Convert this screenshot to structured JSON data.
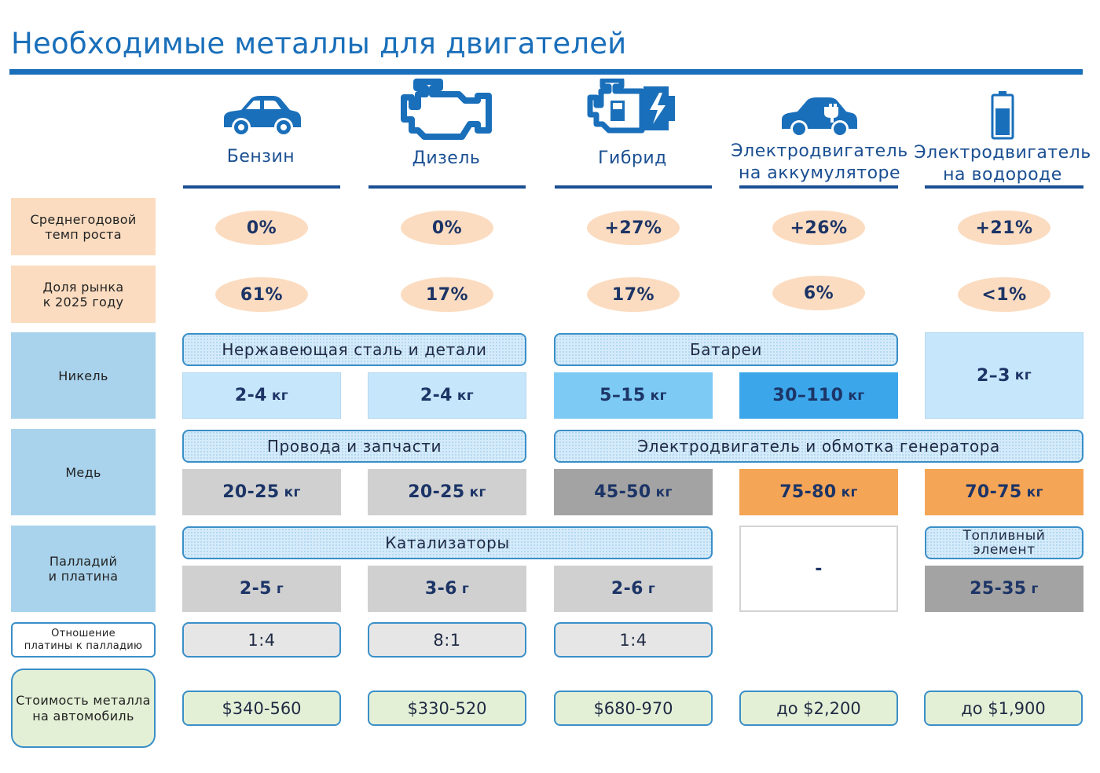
{
  "title": "Необходимые металлы для двигателей",
  "columns": [
    {
      "line1": "Бензин",
      "line2": "",
      "icon": "car-icon"
    },
    {
      "line1": "Дизель",
      "line2": "",
      "icon": "engine-icon"
    },
    {
      "line1": "Гибрид",
      "line2": "",
      "icon": "hybrid-engine-icon"
    },
    {
      "line1": "Электродвигатель",
      "line2": "на аккумуляторе",
      "icon": "electric-car-icon"
    },
    {
      "line1": "Электродвигатель",
      "line2": "на водороде",
      "icon": "battery-icon"
    }
  ],
  "rows": {
    "growth": {
      "label1": "Среднегодовой",
      "label2": "темп роста",
      "values": [
        "0%",
        "0%",
        "+27%",
        "+26%",
        "+21%"
      ]
    },
    "share": {
      "label1": "Доля рынка",
      "label2": "к 2025 году",
      "values": [
        "61%",
        "17%",
        "17%",
        "6%",
        "<1%"
      ]
    },
    "nickel": {
      "label": "Никель",
      "band_a": "Нержавеющая сталь и детали",
      "band_b": "Батареи",
      "values": [
        "2-4",
        "2-4",
        "5–15",
        "30–110",
        "2–3"
      ],
      "unit": "кг"
    },
    "copper": {
      "label": "Медь",
      "band_a": "Провода и запчасти",
      "band_b": "Электродвигатель и обмотка генератора",
      "values": [
        "20-25",
        "20-25",
        "45-50",
        "75-80",
        "70-75"
      ],
      "unit": "кг"
    },
    "palladium": {
      "label1": "Палладий",
      "label2": "и платина",
      "band_a": "Катализаторы",
      "band_b1": "Топливный",
      "band_b2": "элемент",
      "values": [
        "2-5",
        "3-6",
        "2-6",
        "-",
        "25-35"
      ],
      "unit": "г"
    },
    "ratio": {
      "label1": "Отношение",
      "label2": "платины к палладию",
      "values": [
        "1:4",
        "8:1",
        "1:4"
      ]
    },
    "cost": {
      "label1": "Стоимость металла",
      "label2": "на автомобиль",
      "values": [
        "$340-560",
        "$330-520",
        "$680-970",
        "до $2,200",
        "до $1,900"
      ]
    }
  },
  "colors": {
    "accent": "#1a6fba",
    "header": "#1a4f92",
    "peach": "#fbdcc0",
    "label_blue": "#a9d3ec",
    "orange": "#f4a556"
  }
}
